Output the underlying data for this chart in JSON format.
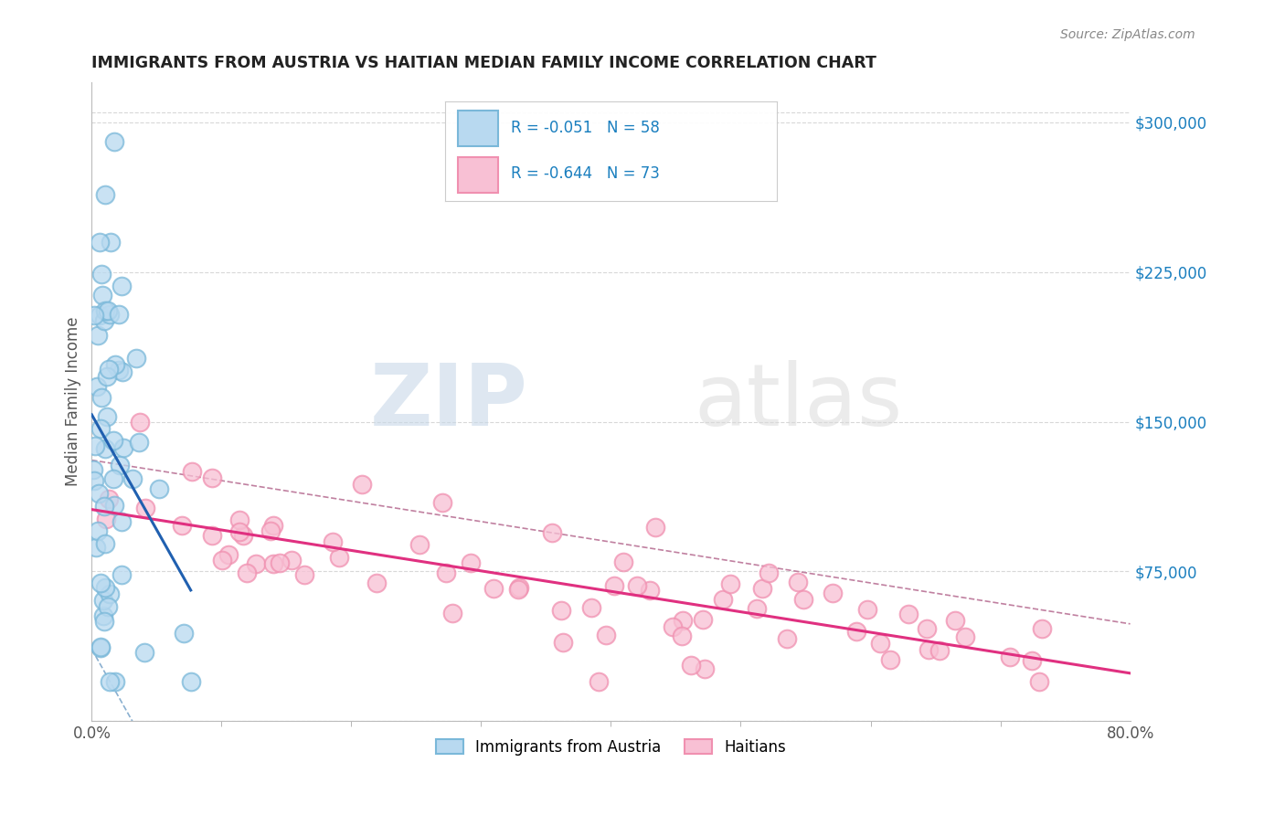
{
  "title": "IMMIGRANTS FROM AUSTRIA VS HAITIAN MEDIAN FAMILY INCOME CORRELATION CHART",
  "source": "Source: ZipAtlas.com",
  "ylabel": "Median Family Income",
  "x_min": 0.0,
  "x_max": 0.8,
  "y_min": 0,
  "y_max": 320000,
  "right_yticks": [
    0,
    75000,
    150000,
    225000,
    300000
  ],
  "right_yticklabels": [
    "",
    "$75,000",
    "$150,000",
    "$225,000",
    "$300,000"
  ],
  "legend_labels": [
    "Immigrants from Austria",
    "Haitians"
  ],
  "austria_color": "#7ab8d9",
  "austria_face": "#b8d9f0",
  "haitian_color": "#f090b0",
  "haitian_face": "#f8c0d4",
  "regression_austria_color": "#2060b0",
  "regression_haitian_color": "#e03080",
  "dashed_color": "#8ab0d0",
  "dashed_haitian_color": "#c080a0",
  "background_color": "#ffffff",
  "watermark_zip": "ZIP",
  "watermark_atlas": "atlas",
  "austria_R": -0.051,
  "austria_N": 58,
  "haitian_R": -0.644,
  "haitian_N": 73,
  "grid_color": "#d8d8d8",
  "title_color": "#222222",
  "source_color": "#888888",
  "tick_color": "#555555",
  "right_tick_color": "#1a7fbf"
}
